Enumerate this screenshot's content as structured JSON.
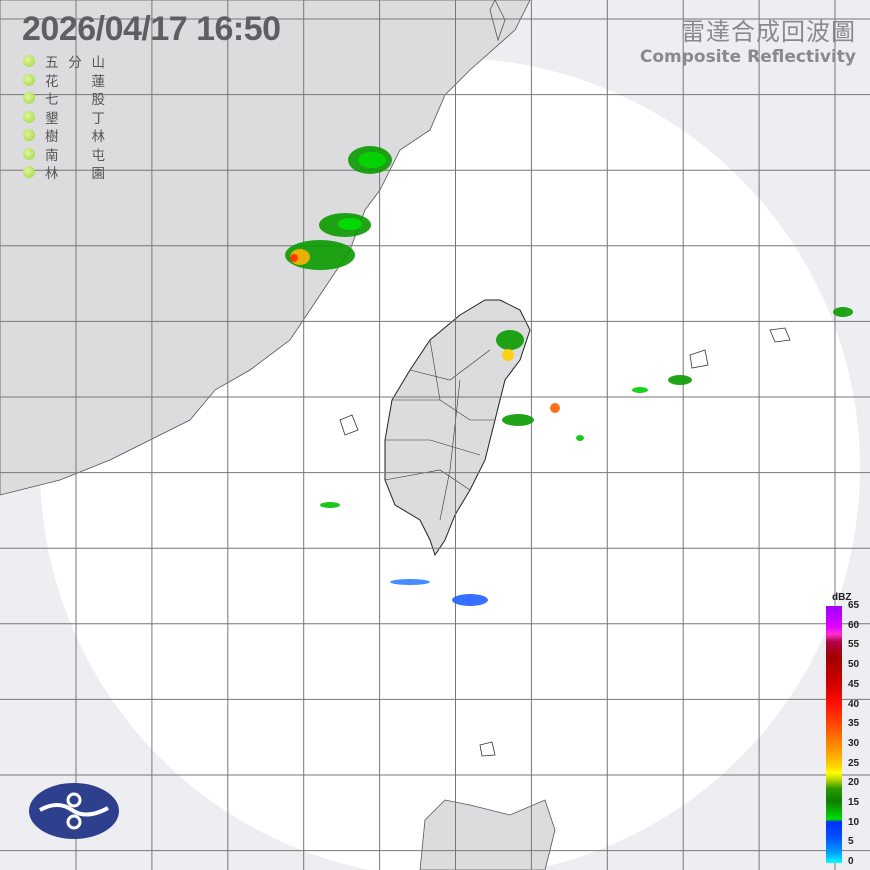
{
  "timestamp": "2026/04/17  16:50",
  "title": {
    "zh": "雷達合成回波圖",
    "en": "Composite Reflectivity"
  },
  "stations": [
    {
      "name": "五分山",
      "status_color": "#9ad43a"
    },
    {
      "name": "花蓮",
      "status_color": "#9ad43a"
    },
    {
      "name": "七股",
      "status_color": "#9ad43a"
    },
    {
      "name": "墾丁",
      "status_color": "#9ad43a"
    },
    {
      "name": "樹林",
      "status_color": "#9ad43a"
    },
    {
      "name": "南屯",
      "status_color": "#9ad43a"
    },
    {
      "name": "林園",
      "status_color": "#9ad43a"
    }
  ],
  "legend": {
    "unit": "dBZ",
    "ticks": [
      "65",
      "60",
      "55",
      "50",
      "45",
      "40",
      "35",
      "30",
      "25",
      "20",
      "15",
      "10",
      "5",
      "0"
    ]
  },
  "logo": "central-weather-administration-logo"
}
